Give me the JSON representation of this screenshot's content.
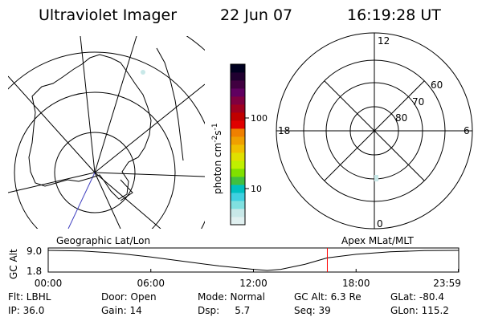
{
  "header": {
    "instrument": "Ultraviolet Imager",
    "date": "22 Jun 07",
    "time": "16:19:28 UT"
  },
  "colorbar": {
    "unit_prefix": "photon cm",
    "unit_exp1": "-2",
    "unit_mid": "s",
    "unit_exp2": "-1",
    "ticks": [
      {
        "label": "100",
        "value": 100
      },
      {
        "label": "10",
        "value": 10
      }
    ],
    "colors": [
      "#e0f0f0",
      "#c8e8e8",
      "#80e0e0",
      "#40d0e0",
      "#00c0c0",
      "#40c040",
      "#80e000",
      "#c0f000",
      "#e0e000",
      "#f0c000",
      "#f0a000",
      "#f08000",
      "#e00000",
      "#c00000",
      "#a00020",
      "#800040",
      "#600060",
      "#400040",
      "#200030",
      "#000020"
    ]
  },
  "right_plot": {
    "mlt_labels": {
      "top": "12",
      "left": "18",
      "right": "6",
      "bottom": "0"
    },
    "lat_labels": [
      "60",
      "70",
      "80"
    ]
  },
  "timeline": {
    "left_label": "Geographic Lat/Lon",
    "right_label": "Apex MLat/MLT",
    "axis_label": "GC Alt",
    "y_ticks": [
      "9.0",
      "1.8"
    ],
    "x_ticks": [
      "00:00",
      "06:00",
      "12:00",
      "18:00",
      "23:59"
    ],
    "current_marker_hours": 16.32,
    "marker_color": "#ff0000",
    "altitude_curve": [
      {
        "h": 0,
        "alt": 9.0
      },
      {
        "h": 2,
        "alt": 8.8
      },
      {
        "h": 4,
        "alt": 8.0
      },
      {
        "h": 6,
        "alt": 6.6
      },
      {
        "h": 8,
        "alt": 5.0
      },
      {
        "h": 10,
        "alt": 3.4
      },
      {
        "h": 12,
        "alt": 2.2
      },
      {
        "h": 12.8,
        "alt": 1.8
      },
      {
        "h": 13.6,
        "alt": 2.2
      },
      {
        "h": 15,
        "alt": 4.0
      },
      {
        "h": 16.3,
        "alt": 6.3
      },
      {
        "h": 18,
        "alt": 7.6
      },
      {
        "h": 20,
        "alt": 8.5
      },
      {
        "h": 22,
        "alt": 8.9
      },
      {
        "h": 23.98,
        "alt": 9.0
      }
    ]
  },
  "footer": {
    "row1": [
      "Flt: LBHL",
      "Door: Open",
      "Mode: Normal",
      "GC Alt: 6.3 Re",
      "GLat: -80.4"
    ],
    "row2": [
      "IP: 36.0",
      "Gain: 14",
      "Dsp:     5.7",
      "Seq: 39",
      "GLon: 115.2"
    ]
  }
}
